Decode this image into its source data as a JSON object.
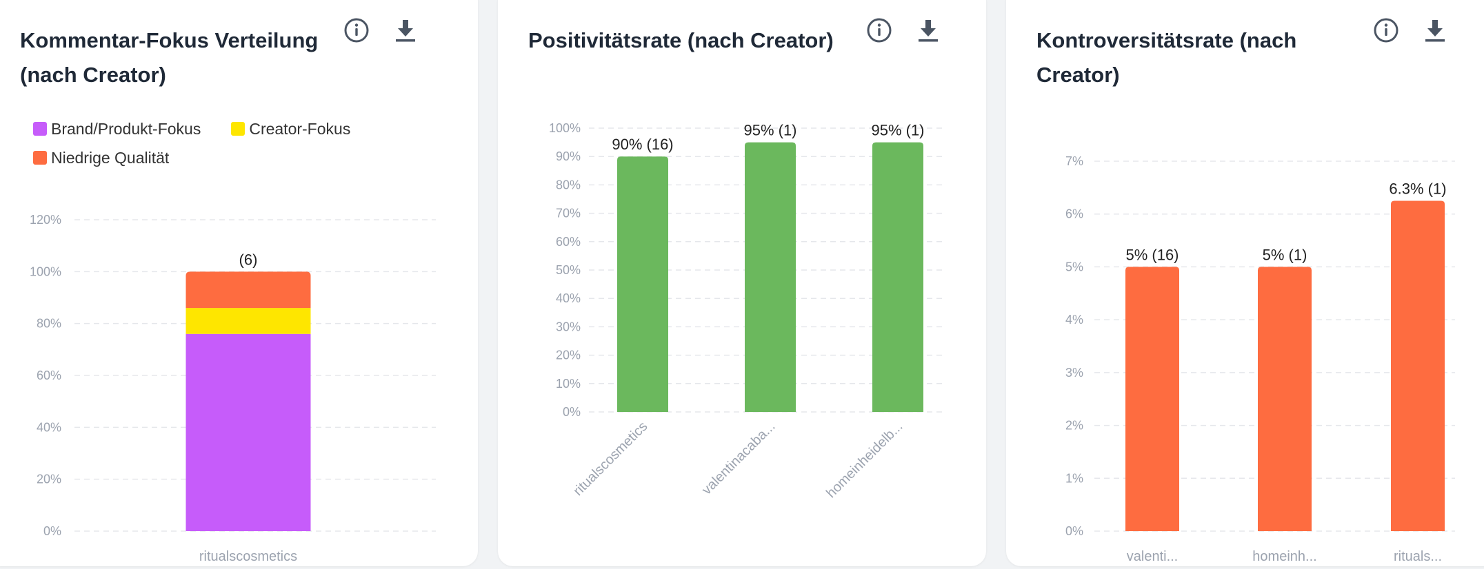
{
  "cards": [
    {
      "title": "Kommentar-Fokus Verteilung (nach Creator)",
      "icons": [
        "info-icon",
        "download-icon"
      ],
      "legend": [
        {
          "label": "Brand/Produkt-Fokus",
          "color": "#c65cfa"
        },
        {
          "label": "Creator-Fokus",
          "color": "#fee600"
        },
        {
          "label": "Niedrige Qualität",
          "color": "#fe6c40"
        }
      ]
    },
    {
      "title": "Positivitätsrate (nach Creator)",
      "icons": [
        "info-icon",
        "download-icon"
      ]
    },
    {
      "title": "Kontroversitätsrate (nach Creator)",
      "icons": [
        "info-icon",
        "download-icon"
      ]
    }
  ],
  "chart_data": [
    {
      "type": "bar",
      "stacked": true,
      "title": "Kommentar-Fokus Verteilung (nach Creator)",
      "categories": [
        "ritualscosmetics"
      ],
      "series": [
        {
          "name": "Brand/Produkt-Fokus",
          "values": [
            76
          ],
          "color": "#c65cfa"
        },
        {
          "name": "Creator-Fokus",
          "values": [
            10
          ],
          "color": "#fee600"
        },
        {
          "name": "Niedrige Qualität",
          "values": [
            14
          ],
          "color": "#fe6c40"
        }
      ],
      "data_labels": [
        "(6)"
      ],
      "ylim": [
        0,
        120
      ],
      "yticks": [
        "0%",
        "20%",
        "40%",
        "60%",
        "80%",
        "100%",
        "120%"
      ],
      "grid": true,
      "legend_position": "top-left"
    },
    {
      "type": "bar",
      "title": "Positivitätsrate (nach Creator)",
      "categories": [
        "ritualscosmetics",
        "valentinacaba...",
        "homeinheidelb..."
      ],
      "values": [
        90,
        95,
        95
      ],
      "data_labels": [
        "90% (16)",
        "95% (1)",
        "95% (1)"
      ],
      "ylim": [
        0,
        100
      ],
      "yticks": [
        "0%",
        "10%",
        "20%",
        "30%",
        "40%",
        "50%",
        "60%",
        "70%",
        "80%",
        "90%",
        "100%"
      ],
      "color": "#6bb85d",
      "grid": true
    },
    {
      "type": "bar",
      "title": "Kontroversitätsrate (nach Creator)",
      "categories": [
        "valenti...",
        "homeinh...",
        "rituals..."
      ],
      "values": [
        5,
        5,
        6.25
      ],
      "data_labels": [
        "5% (16)",
        "5% (1)",
        "6.3% (1)"
      ],
      "ylim": [
        0,
        7
      ],
      "yticks": [
        "0%",
        "1%",
        "2%",
        "3%",
        "4%",
        "5%",
        "6%",
        "7%"
      ],
      "color": "#fe6c40",
      "grid": true
    }
  ]
}
